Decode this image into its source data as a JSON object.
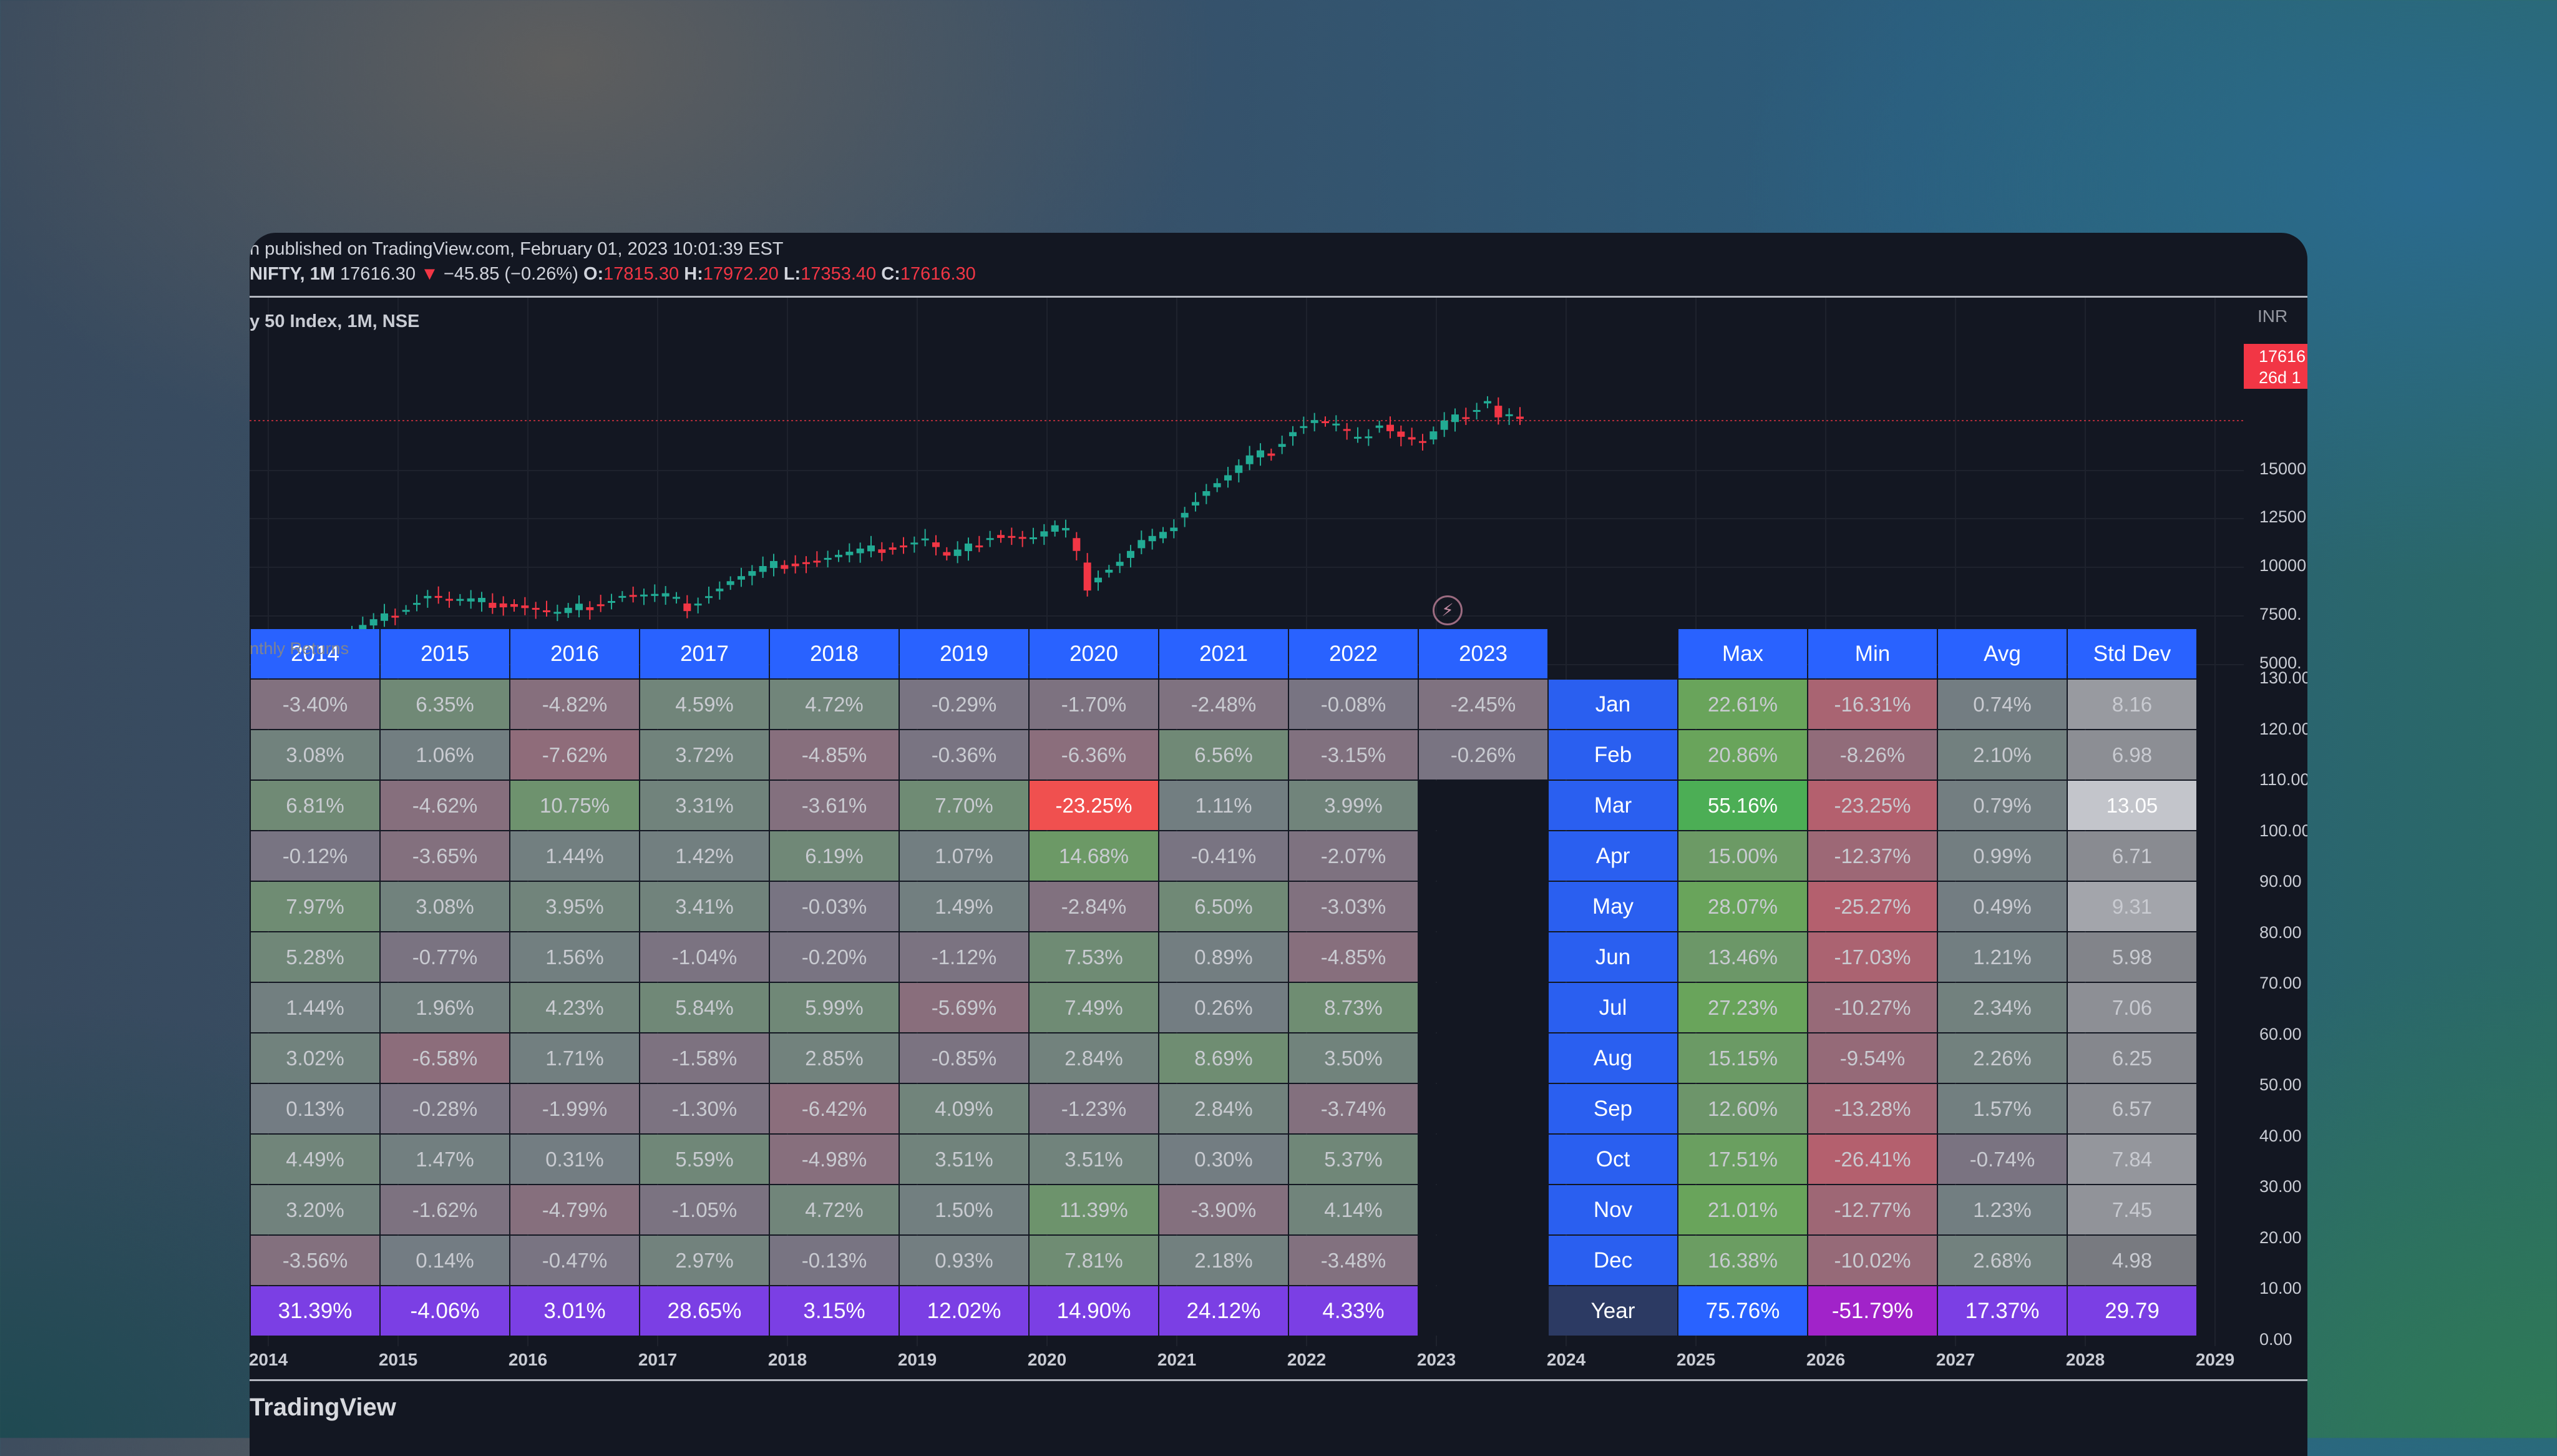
{
  "header": {
    "published": "n published on TradingView.com, February 01, 2023 10:01:39 EST",
    "symbol_line": "NIFTY, 1M",
    "last": "17616.30",
    "change": "−45.85 (−0.26%)",
    "o_label": "O:",
    "o": "17815.30",
    "h_label": "H:",
    "h": "17972.20",
    "l_label": "L:",
    "l": "17353.40",
    "c_label": "C:",
    "c": "17616.30"
  },
  "chart": {
    "symbol_title": "y 50 Index, 1M, NSE",
    "currency": "INR",
    "price_badge_line1": "17616",
    "price_badge_line2": "26d 1",
    "price_axis": [
      "15000",
      "12500",
      "10000",
      "7500.",
      "5000."
    ],
    "pct_axis": [
      "130.00",
      "120.00",
      "110.00",
      "100.00",
      "90.00",
      "80.00",
      "70.00",
      "60.00",
      "50.00",
      "40.00",
      "30.00",
      "20.00",
      "10.00",
      "0.00"
    ],
    "time_axis": [
      "2014",
      "2015",
      "2016",
      "2017",
      "2018",
      "2019",
      "2020",
      "2021",
      "2022",
      "2023",
      "2024",
      "2025",
      "2026",
      "2027",
      "2028",
      "2029"
    ],
    "colors": {
      "up": "#22ab94",
      "down": "#f23645",
      "header_blue": "#2962ff",
      "year_purple": "#7b3fe4"
    }
  },
  "table": {
    "title": "nthly Returns",
    "years": [
      "2014",
      "2015",
      "2016",
      "2017",
      "2018",
      "2019",
      "2020",
      "2021",
      "2022",
      "2023"
    ],
    "stat_headers": [
      "Max",
      "Min",
      "Avg",
      "Std Dev"
    ],
    "months": [
      "Jan",
      "Feb",
      "Mar",
      "Apr",
      "May",
      "Jun",
      "Jul",
      "Aug",
      "Sep",
      "Oct",
      "Nov",
      "Dec"
    ],
    "year_row_label": "Year",
    "rows": [
      [
        "-3.40%",
        "6.35%",
        "-4.82%",
        "4.59%",
        "4.72%",
        "-0.29%",
        "-1.70%",
        "-2.48%",
        "-0.08%",
        "-2.45%"
      ],
      [
        "3.08%",
        "1.06%",
        "-7.62%",
        "3.72%",
        "-4.85%",
        "-0.36%",
        "-6.36%",
        "6.56%",
        "-3.15%",
        "-0.26%"
      ],
      [
        "6.81%",
        "-4.62%",
        "10.75%",
        "3.31%",
        "-3.61%",
        "7.70%",
        "-23.25%",
        "1.11%",
        "3.99%",
        ""
      ],
      [
        "-0.12%",
        "-3.65%",
        "1.44%",
        "1.42%",
        "6.19%",
        "1.07%",
        "14.68%",
        "-0.41%",
        "-2.07%",
        ""
      ],
      [
        "7.97%",
        "3.08%",
        "3.95%",
        "3.41%",
        "-0.03%",
        "1.49%",
        "-2.84%",
        "6.50%",
        "-3.03%",
        ""
      ],
      [
        "5.28%",
        "-0.77%",
        "1.56%",
        "-1.04%",
        "-0.20%",
        "-1.12%",
        "7.53%",
        "0.89%",
        "-4.85%",
        ""
      ],
      [
        "1.44%",
        "1.96%",
        "4.23%",
        "5.84%",
        "5.99%",
        "-5.69%",
        "7.49%",
        "0.26%",
        "8.73%",
        ""
      ],
      [
        "3.02%",
        "-6.58%",
        "1.71%",
        "-1.58%",
        "2.85%",
        "-0.85%",
        "2.84%",
        "8.69%",
        "3.50%",
        ""
      ],
      [
        "0.13%",
        "-0.28%",
        "-1.99%",
        "-1.30%",
        "-6.42%",
        "4.09%",
        "-1.23%",
        "2.84%",
        "-3.74%",
        ""
      ],
      [
        "4.49%",
        "1.47%",
        "0.31%",
        "5.59%",
        "-4.98%",
        "3.51%",
        "3.51%",
        "0.30%",
        "5.37%",
        ""
      ],
      [
        "3.20%",
        "-1.62%",
        "-4.79%",
        "-1.05%",
        "4.72%",
        "1.50%",
        "11.39%",
        "-3.90%",
        "4.14%",
        ""
      ],
      [
        "-3.56%",
        "0.14%",
        "-0.47%",
        "2.97%",
        "-0.13%",
        "0.93%",
        "7.81%",
        "2.18%",
        "-3.48%",
        ""
      ]
    ],
    "year_totals": [
      "31.39%",
      "-4.06%",
      "3.01%",
      "28.65%",
      "3.15%",
      "12.02%",
      "14.90%",
      "24.12%",
      "4.33%",
      ""
    ],
    "stats": [
      [
        "22.61%",
        "-16.31%",
        "0.74%",
        "8.16"
      ],
      [
        "20.86%",
        "-8.26%",
        "2.10%",
        "6.98"
      ],
      [
        "55.16%",
        "-23.25%",
        "0.79%",
        "13.05"
      ],
      [
        "15.00%",
        "-12.37%",
        "0.99%",
        "6.71"
      ],
      [
        "28.07%",
        "-25.27%",
        "0.49%",
        "9.31"
      ],
      [
        "13.46%",
        "-17.03%",
        "1.21%",
        "5.98"
      ],
      [
        "27.23%",
        "-10.27%",
        "2.34%",
        "7.06"
      ],
      [
        "15.15%",
        "-9.54%",
        "2.26%",
        "6.25"
      ],
      [
        "12.60%",
        "-13.28%",
        "1.57%",
        "6.57"
      ],
      [
        "17.51%",
        "-26.41%",
        "-0.74%",
        "7.84"
      ],
      [
        "21.01%",
        "-12.77%",
        "1.23%",
        "7.45"
      ],
      [
        "16.38%",
        "-10.02%",
        "2.68%",
        "4.98"
      ]
    ],
    "year_stats": [
      "75.76%",
      "-51.79%",
      "17.37%",
      "29.79"
    ]
  },
  "footer": {
    "logo_text": "TradingView"
  }
}
